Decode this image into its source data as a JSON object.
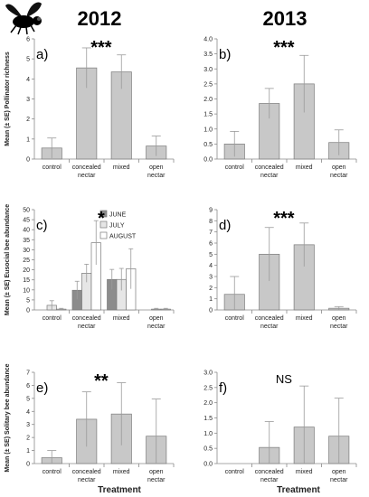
{
  "figure": {
    "years": [
      "2012",
      "2013"
    ],
    "x_label": "Treatment",
    "icon": "fly-icon",
    "colors": {
      "bar": "#c8c8c8",
      "bar_edge": "#7a7a7a",
      "error": "#9a9a9a",
      "june": "#8c8c8c",
      "july": "#e6e6e6",
      "august": "#ffffff",
      "axis": "#8a8a8a"
    }
  },
  "chart_data": [
    {
      "panel": "a)",
      "year": "2012",
      "type": "bar",
      "ylabel": "Mean (± SE) Pollinator richness",
      "categories": [
        "control",
        "concealed nectar",
        "mixed",
        "open nectar"
      ],
      "ylim": [
        0,
        6
      ],
      "yticks": [
        0,
        1,
        2,
        3,
        4,
        5,
        6
      ],
      "values": [
        0.55,
        4.55,
        4.35,
        0.65
      ],
      "errors": [
        0.5,
        1.0,
        0.85,
        0.5
      ],
      "significance": "***"
    },
    {
      "panel": "b)",
      "year": "2013",
      "type": "bar",
      "ylabel": "",
      "categories": [
        "control",
        "concealed nectar",
        "mixed",
        "open nectar"
      ],
      "ylim": [
        0,
        4
      ],
      "yticks": [
        0,
        0.5,
        1.0,
        1.5,
        2.0,
        2.5,
        3.0,
        3.5,
        4.0
      ],
      "values": [
        0.5,
        1.85,
        2.5,
        0.55
      ],
      "errors": [
        0.42,
        0.5,
        0.95,
        0.42
      ],
      "significance": "***"
    },
    {
      "panel": "c)",
      "year": "2012",
      "type": "bar",
      "ylabel": "Mean (± SE) Eusocial bee abundance",
      "categories": [
        "control",
        "concealed nectar",
        "mixed",
        "open nectar"
      ],
      "ylim": [
        0,
        50
      ],
      "yticks": [
        0,
        5,
        10,
        15,
        20,
        25,
        30,
        35,
        40,
        45,
        50
      ],
      "legend": [
        "JUNE",
        "JULY",
        "AUGUST"
      ],
      "series": [
        {
          "name": "JUNE",
          "values": [
            0,
            9.8,
            15.2,
            0
          ],
          "errors": [
            0,
            4.5,
            5.0,
            0
          ]
        },
        {
          "name": "JULY",
          "values": [
            2.3,
            18.3,
            15.2,
            0.4
          ],
          "errors": [
            2.3,
            4.5,
            5.5,
            0.4
          ]
        },
        {
          "name": "AUGUST",
          "values": [
            0.4,
            33.5,
            20.5,
            0.4
          ],
          "errors": [
            0.4,
            11.0,
            10.0,
            0.4
          ]
        }
      ],
      "significance": "*"
    },
    {
      "panel": "d)",
      "year": "2013",
      "type": "bar",
      "ylabel": "",
      "categories": [
        "control",
        "concealed nectar",
        "mixed",
        "open nectar"
      ],
      "ylim": [
        0,
        9
      ],
      "yticks": [
        0,
        1,
        2,
        3,
        4,
        5,
        6,
        7,
        8,
        9
      ],
      "values": [
        1.4,
        5.0,
        5.85,
        0.15
      ],
      "errors": [
        1.6,
        2.4,
        1.95,
        0.15
      ],
      "significance": "***"
    },
    {
      "panel": "e)",
      "year": "2012",
      "type": "bar",
      "ylabel": "Mean (± SE) Solitary bee abundance",
      "categories": [
        "control",
        "concealed nectar",
        "mixed",
        "open nectar"
      ],
      "ylim": [
        0,
        7
      ],
      "yticks": [
        0,
        1,
        2,
        3,
        4,
        5,
        6,
        7
      ],
      "values": [
        0.45,
        3.4,
        3.8,
        2.1
      ],
      "errors": [
        0.55,
        2.1,
        2.4,
        2.85
      ],
      "significance": "**"
    },
    {
      "panel": "f)",
      "year": "2013",
      "type": "bar",
      "ylabel": "",
      "categories": [
        "control",
        "concealed nectar",
        "mixed",
        "open nectar"
      ],
      "ylim": [
        0,
        3
      ],
      "yticks": [
        0,
        0.5,
        1.0,
        1.5,
        2.0,
        2.5,
        3.0
      ],
      "values": [
        0,
        0.53,
        1.2,
        0.9
      ],
      "errors": [
        0,
        0.85,
        1.35,
        1.25
      ],
      "significance": "NS"
    }
  ]
}
